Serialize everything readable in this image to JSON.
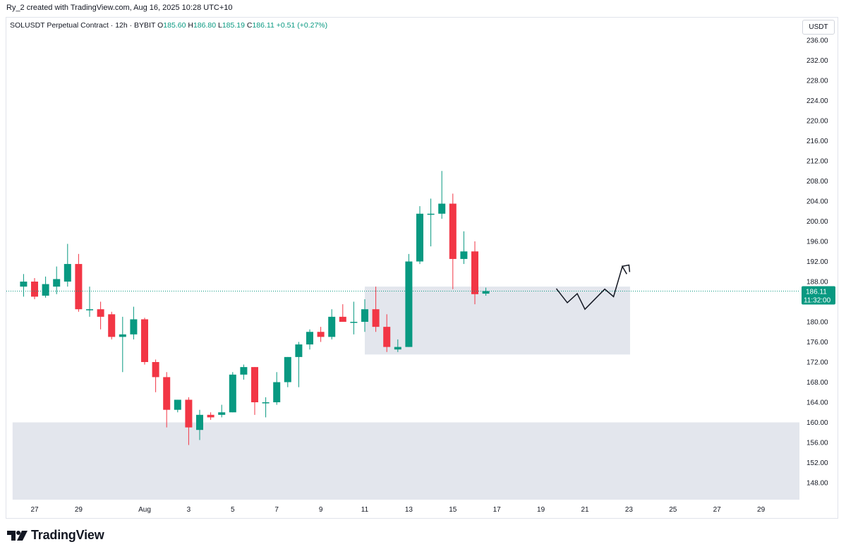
{
  "caption": "Ry_2 created with TradingView.com, Aug 16, 2025 10:28 UTC+10",
  "legend": {
    "symbol": "SOLUSDT Perpetual Contract · 12h · BYBIT",
    "open_label": "O",
    "open": "185.60",
    "high_label": "H",
    "high": "186.80",
    "low_label": "L",
    "low": "185.19",
    "close_label": "C",
    "close": "186.11",
    "change": "+0.51 (+0.27%)"
  },
  "currency_button": "USDT",
  "price_tag": {
    "value": "186.11",
    "countdown": "11:32:00"
  },
  "brand": "TradingView",
  "colors": {
    "up": "#089981",
    "down": "#f23645",
    "zone": "#e0e3eb",
    "grid_text": "#131722"
  },
  "chart_data": {
    "type": "candlestick",
    "interval": "12h",
    "y_axis": {
      "min": 144,
      "max": 238,
      "ticks": [
        "236.00",
        "232.00",
        "228.00",
        "224.00",
        "220.00",
        "216.00",
        "212.00",
        "208.00",
        "204.00",
        "200.00",
        "196.00",
        "192.00",
        "188.00",
        "184.00",
        "180.00",
        "176.00",
        "172.00",
        "168.00",
        "164.00",
        "160.00",
        "156.00",
        "152.00",
        "148.00"
      ]
    },
    "x_axis": {
      "start_day": 26.5,
      "day_offsets": [
        27,
        29,
        32,
        34,
        36,
        38,
        40,
        42,
        44,
        46,
        48,
        50,
        52,
        54,
        56,
        58,
        60,
        62,
        64
      ],
      "labels": [
        "27",
        "29",
        "Aug",
        "3",
        "5",
        "7",
        "9",
        "11",
        "13",
        "15",
        "17",
        "19",
        "21",
        "23",
        "25",
        "27",
        "29",
        "",
        ""
      ]
    },
    "candles": [
      {
        "o": 187.0,
        "h": 189.5,
        "l": 185.0,
        "c": 188.0
      },
      {
        "o": 188.0,
        "h": 188.7,
        "l": 184.5,
        "c": 185.0
      },
      {
        "o": 185.2,
        "h": 189.0,
        "l": 184.8,
        "c": 187.5
      },
      {
        "o": 187.0,
        "h": 191.0,
        "l": 185.5,
        "c": 188.5
      },
      {
        "o": 188.0,
        "h": 195.5,
        "l": 187.0,
        "c": 191.5
      },
      {
        "o": 191.5,
        "h": 193.5,
        "l": 182.0,
        "c": 182.5
      },
      {
        "o": 182.5,
        "h": 187.0,
        "l": 181.0,
        "c": 182.5
      },
      {
        "o": 182.5,
        "h": 184.0,
        "l": 178.5,
        "c": 181.0
      },
      {
        "o": 181.5,
        "h": 182.0,
        "l": 176.5,
        "c": 177.0
      },
      {
        "o": 177.0,
        "h": 181.0,
        "l": 170.0,
        "c": 177.5
      },
      {
        "o": 177.5,
        "h": 183.0,
        "l": 176.5,
        "c": 180.5
      },
      {
        "o": 180.5,
        "h": 180.8,
        "l": 171.5,
        "c": 172.0
      },
      {
        "o": 172.0,
        "h": 172.5,
        "l": 166.0,
        "c": 169.0
      },
      {
        "o": 169.0,
        "h": 170.0,
        "l": 159.0,
        "c": 162.5
      },
      {
        "o": 162.5,
        "h": 164.5,
        "l": 162.0,
        "c": 164.5
      },
      {
        "o": 164.5,
        "h": 165.0,
        "l": 155.5,
        "c": 159.0
      },
      {
        "o": 158.5,
        "h": 162.5,
        "l": 156.5,
        "c": 161.5
      },
      {
        "o": 161.5,
        "h": 162.0,
        "l": 160.5,
        "c": 161.0
      },
      {
        "o": 161.5,
        "h": 163.5,
        "l": 161.0,
        "c": 162.0
      },
      {
        "o": 162.0,
        "h": 170.0,
        "l": 162.0,
        "c": 169.5
      },
      {
        "o": 169.5,
        "h": 171.5,
        "l": 168.5,
        "c": 171.0
      },
      {
        "o": 171.0,
        "h": 171.0,
        "l": 161.5,
        "c": 164.0
      },
      {
        "o": 164.0,
        "h": 165.0,
        "l": 161.0,
        "c": 164.0
      },
      {
        "o": 164.0,
        "h": 170.0,
        "l": 163.5,
        "c": 168.0
      },
      {
        "o": 168.0,
        "h": 173.0,
        "l": 167.0,
        "c": 173.0
      },
      {
        "o": 173.0,
        "h": 176.0,
        "l": 167.0,
        "c": 175.5
      },
      {
        "o": 175.5,
        "h": 178.5,
        "l": 174.5,
        "c": 178.0
      },
      {
        "o": 178.0,
        "h": 179.0,
        "l": 176.0,
        "c": 177.0
      },
      {
        "o": 177.0,
        "h": 182.5,
        "l": 176.5,
        "c": 181.0
      },
      {
        "o": 181.0,
        "h": 183.5,
        "l": 180.5,
        "c": 180.0
      },
      {
        "o": 180.0,
        "h": 184.0,
        "l": 177.5,
        "c": 180.0
      },
      {
        "o": 180.0,
        "h": 184.5,
        "l": 178.0,
        "c": 182.5
      },
      {
        "o": 182.5,
        "h": 187.0,
        "l": 178.0,
        "c": 179.0
      },
      {
        "o": 179.0,
        "h": 181.5,
        "l": 174.0,
        "c": 175.0
      },
      {
        "o": 174.5,
        "h": 176.5,
        "l": 174.0,
        "c": 175.0
      },
      {
        "o": 175.0,
        "h": 193.5,
        "l": 175.0,
        "c": 192.0
      },
      {
        "o": 192.0,
        "h": 203.0,
        "l": 191.5,
        "c": 201.5
      },
      {
        "o": 201.5,
        "h": 204.5,
        "l": 195.0,
        "c": 201.5
      },
      {
        "o": 201.5,
        "h": 210.0,
        "l": 200.5,
        "c": 203.5
      },
      {
        "o": 203.5,
        "h": 205.5,
        "l": 186.5,
        "c": 192.5
      },
      {
        "o": 192.5,
        "h": 198.0,
        "l": 191.5,
        "c": 194.0
      },
      {
        "o": 194.0,
        "h": 196.0,
        "l": 183.5,
        "c": 185.5
      },
      {
        "o": 185.6,
        "h": 186.8,
        "l": 185.19,
        "c": 186.11
      }
    ],
    "zones": [
      {
        "day_start": 42,
        "day_end": 54.05,
        "top": 187.0,
        "bottom": 173.5
      },
      {
        "day_start": 26.0,
        "day_end": 62.5,
        "top": 160.0,
        "bottom": 144.0
      }
    ],
    "current_price_line": 186.11,
    "projection_path": [
      {
        "day": 50.7,
        "p": 186.6
      },
      {
        "day": 51.2,
        "p": 183.8
      },
      {
        "day": 51.65,
        "p": 185.6
      },
      {
        "day": 52.0,
        "p": 182.5
      },
      {
        "day": 52.9,
        "p": 186.5
      },
      {
        "day": 53.3,
        "p": 185.0
      },
      {
        "day": 53.7,
        "p": 191.0
      },
      {
        "day": 53.9,
        "p": 189.5
      }
    ],
    "projection_arrow": {
      "day": 54.0,
      "p": 191.3
    }
  }
}
